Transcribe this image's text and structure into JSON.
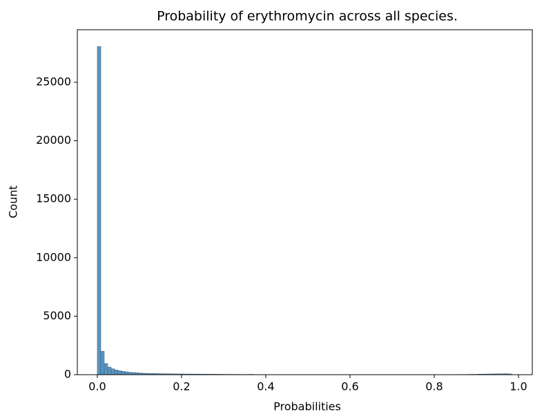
{
  "chart_data": {
    "type": "histogram",
    "title": "Probability of erythromycin across all species.",
    "x_label": "Probabilities",
    "y_label": "Count",
    "color": "#5a96c4",
    "edge_color": "#2f4f66",
    "bins": [
      0,
      0.0082,
      0.0164,
      0.0246,
      0.0328,
      0.041,
      0.0492,
      0.0574,
      0.0656,
      0.0738,
      0.082,
      0.0902,
      0.0984,
      0.1066,
      0.1148,
      0.123,
      0.1312,
      0.1394,
      0.1476,
      0.1558,
      0.164,
      0.1722,
      0.1804,
      0.1886,
      0.1968,
      0.205,
      0.2132,
      0.2214,
      0.2296,
      0.2378,
      0.246,
      0.2542,
      0.2624,
      0.2706,
      0.2788,
      0.287,
      0.2952,
      0.3034,
      0.3116,
      0.3198,
      0.328,
      0.3362,
      0.3444,
      0.3526,
      0.3608,
      0.369,
      0.3772,
      0.3854,
      0.3936,
      0.4018,
      0.41,
      0.4182,
      0.4264,
      0.4346,
      0.4428,
      0.451,
      0.4592,
      0.4674,
      0.4756,
      0.4838,
      0.492,
      0.5002,
      0.5084,
      0.5166,
      0.5248,
      0.533,
      0.5412,
      0.5494,
      0.5576,
      0.5658,
      0.574,
      0.5822,
      0.5904,
      0.5986,
      0.6068,
      0.615,
      0.6232,
      0.6314,
      0.6396,
      0.6478,
      0.656,
      0.6642,
      0.6724,
      0.6806,
      0.6888,
      0.697,
      0.7052,
      0.7134,
      0.7216,
      0.7298,
      0.738,
      0.7462,
      0.7544,
      0.7626,
      0.7708,
      0.779,
      0.7872,
      0.7954,
      0.8036,
      0.8118,
      0.82,
      0.8282,
      0.8364,
      0.8446,
      0.8528,
      0.861,
      0.8692,
      0.8774,
      0.8856,
      0.8938,
      0.902,
      0.9102,
      0.9184,
      0.9266,
      0.9348,
      0.943,
      0.9512,
      0.9594,
      0.9676,
      0.9758,
      0.984
    ],
    "counts": [
      28050,
      2000,
      950,
      650,
      500,
      400,
      330,
      280,
      240,
      200,
      180,
      160,
      140,
      120,
      110,
      100,
      95,
      90,
      85,
      80,
      75,
      70,
      65,
      60,
      58,
      55,
      52,
      50,
      48,
      45,
      42,
      40,
      38,
      36,
      34,
      32,
      30,
      28,
      26,
      25,
      24,
      22,
      20,
      18,
      30,
      15,
      14,
      13,
      12,
      11,
      10,
      10,
      9,
      9,
      8,
      8,
      8,
      7,
      7,
      7,
      6,
      6,
      6,
      6,
      5,
      5,
      5,
      5,
      5,
      5,
      5,
      5,
      5,
      5,
      5,
      5,
      5,
      5,
      5,
      5,
      5,
      5,
      5,
      5,
      5,
      5,
      5,
      5,
      5,
      5,
      5,
      5,
      5,
      5,
      5,
      5,
      5,
      6,
      6,
      7,
      8,
      9,
      10,
      12,
      14,
      16,
      18,
      20,
      30,
      25,
      40,
      45,
      50,
      55,
      60,
      65,
      70,
      75,
      80,
      60
    ],
    "xlim": [
      -0.0475,
      1.0328
    ],
    "ylim": [
      0,
      29490
    ],
    "xticks": [
      {
        "value": 0,
        "label": "0.0"
      },
      0.2,
      0.4,
      0.6,
      0.8,
      {
        "value": 1,
        "label": "1.0"
      }
    ],
    "yticks": [
      0,
      5000,
      10000,
      15000,
      20000,
      25000
    ]
  }
}
